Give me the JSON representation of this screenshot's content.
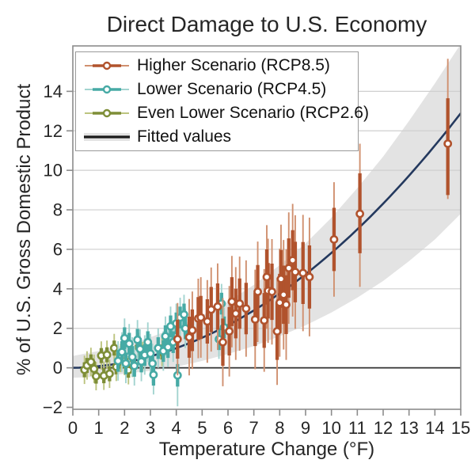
{
  "title": "Direct Damage to U.S. Economy",
  "colors": {
    "rcp85": "#b1532d",
    "rcp85_light": "#d0906f",
    "rcp45": "#46aaa5",
    "rcp45_light": "#a3d4d0",
    "rcp26": "#7e8e37",
    "rcp26_light": "#bcc47f",
    "fit_line": "#24395e",
    "band": "#e3e3e3",
    "grid": "#cfcfcf",
    "spine": "#8c8c8c",
    "zero_line": "#303030",
    "legend_fit_line": "#1a1a1a",
    "text": "#262626"
  },
  "legend": {
    "items": [
      {
        "id": "rcp85",
        "label": "Higher Scenario (RCP8.5)",
        "type": "series",
        "color": "#b1532d",
        "color_light": "#d0906f"
      },
      {
        "id": "rcp45",
        "label": "Lower Scenario (RCP4.5)",
        "type": "series",
        "color": "#46aaa5",
        "color_light": "#a3d4d0"
      },
      {
        "id": "rcp26",
        "label": "Even Lower Scenario (RCP2.6)",
        "type": "series",
        "color": "#7e8e37",
        "color_light": "#bcc47f"
      },
      {
        "id": "fit",
        "label": "Fitted values",
        "type": "fit",
        "color": "#1a1a1a",
        "band": "#e3e3e3"
      }
    ]
  },
  "chart_data": {
    "type": "scatter",
    "title": "Direct Damage to U.S. Economy",
    "xlabel": "Temperature Change (°F)",
    "ylabel": "% of U.S. Gross Domestic Product",
    "xlim": [
      0,
      15
    ],
    "ylim": [
      -2.1,
      16.3
    ],
    "x_ticks": [
      0,
      1,
      2,
      3,
      4,
      5,
      6,
      7,
      8,
      9,
      10,
      11,
      12,
      13,
      14,
      15
    ],
    "x_tick_labels": [
      "0",
      "1",
      "2",
      "3",
      "4",
      "5",
      "6",
      "7",
      "8",
      "9",
      "10",
      "11",
      "12",
      "13",
      "14",
      "15"
    ],
    "y_ticks": [
      -2,
      0,
      2,
      4,
      6,
      8,
      10,
      12,
      14
    ],
    "y_tick_labels": [
      "−2",
      "0",
      "2",
      "4",
      "6",
      "8",
      "10",
      "12",
      "14"
    ],
    "grid_values": [
      2,
      4,
      6,
      8,
      10,
      12,
      14
    ],
    "zero_line_value": 0,
    "legend_position": "upper left",
    "series": [
      {
        "name": "Even Lower Scenario (RCP2.6)",
        "color": "#7e8e37",
        "color_light": "#bcc47f",
        "points": [
          [
            0.45,
            -0.1
          ],
          [
            0.55,
            0.12
          ],
          [
            0.7,
            0.3
          ],
          [
            0.82,
            -0.05
          ],
          [
            0.9,
            -0.42
          ],
          [
            1.1,
            0.62
          ],
          [
            1.2,
            -0.4
          ],
          [
            1.32,
            0.66
          ],
          [
            1.42,
            -0.3
          ],
          [
            1.6,
            1.0
          ],
          [
            1.68,
            0.05
          ],
          [
            1.85,
            0.5
          ],
          [
            2.0,
            0.35
          ],
          [
            2.15,
            -0.12
          ],
          [
            2.3,
            0.25
          ],
          [
            2.55,
            1.05
          ],
          [
            2.7,
            0.6
          ],
          [
            3.45,
            0.8
          ]
        ],
        "thick_err": {
          "base": 0.38,
          "per_degree": 0
        },
        "thin_err": {
          "base": 0.72,
          "per_degree": 0
        },
        "overrides": []
      },
      {
        "name": "Lower Scenario (RCP4.5)",
        "color": "#46aaa5",
        "color_light": "#a3d4d0",
        "points": [
          [
            1.75,
            0.35
          ],
          [
            1.9,
            0.8
          ],
          [
            2.0,
            1.5
          ],
          [
            2.05,
            0.22
          ],
          [
            2.18,
            1.22
          ],
          [
            2.3,
            0.55
          ],
          [
            2.38,
            0.1
          ],
          [
            2.5,
            1.42
          ],
          [
            2.6,
            0.95
          ],
          [
            2.65,
            0.32
          ],
          [
            2.78,
            0.65
          ],
          [
            2.9,
            1.3
          ],
          [
            3.0,
            0.72
          ],
          [
            3.08,
            0.22
          ],
          [
            3.12,
            -0.35
          ],
          [
            3.3,
            1.0
          ],
          [
            3.5,
            0.85
          ],
          [
            3.58,
            1.6
          ],
          [
            3.68,
            1.05
          ],
          [
            3.78,
            2.1
          ],
          [
            3.88,
            1.3
          ],
          [
            4.0,
            2.25
          ],
          [
            4.05,
            -0.38
          ],
          [
            4.15,
            2.55
          ],
          [
            4.3,
            2.7
          ],
          [
            4.35,
            2.0
          ],
          [
            4.5,
            1.65
          ],
          [
            5.65,
            1.45
          ],
          [
            5.75,
            3.25
          ],
          [
            5.85,
            2.05
          ]
        ],
        "thick_err": {
          "base": 0.55,
          "per_degree": 0
        },
        "thin_err": {
          "base": 1.0,
          "per_degree": 0
        },
        "overrides": [
          {
            "t": 4.05,
            "thick": [
              -0.95,
              0.19
            ],
            "thin": [
              -1.95,
              0.62
            ]
          }
        ]
      },
      {
        "name": "Higher Scenario (RCP8.5)",
        "color": "#b1532d",
        "color_light": "#d0906f",
        "points": [
          [
            4.05,
            1.45
          ],
          [
            4.5,
            1.55
          ],
          [
            4.62,
            1.9
          ],
          [
            4.85,
            2.5
          ],
          [
            4.95,
            2.55
          ],
          [
            5.2,
            2.35
          ],
          [
            5.35,
            2.95
          ],
          [
            5.6,
            3.1
          ],
          [
            5.8,
            1.3
          ],
          [
            6.05,
            1.85
          ],
          [
            6.15,
            3.35
          ],
          [
            6.3,
            2.75
          ],
          [
            6.45,
            3.25
          ],
          [
            6.7,
            3.0
          ],
          [
            7.05,
            2.45
          ],
          [
            7.15,
            3.85
          ],
          [
            7.4,
            2.4
          ],
          [
            7.5,
            4.6
          ],
          [
            7.55,
            3.9
          ],
          [
            7.7,
            3.85
          ],
          [
            7.9,
            1.85
          ],
          [
            8.0,
            3.3
          ],
          [
            8.05,
            4.5
          ],
          [
            8.15,
            3.7
          ],
          [
            8.25,
            3.2
          ],
          [
            8.35,
            5.05
          ],
          [
            8.5,
            5.45
          ],
          [
            8.6,
            4.85
          ],
          [
            8.9,
            4.8
          ],
          [
            9.15,
            4.6
          ],
          [
            10.1,
            6.5
          ],
          [
            11.1,
            7.8
          ],
          [
            14.5,
            11.35
          ]
        ],
        "thick_err": {
          "base": 0.5,
          "per_degree": 0.12
        },
        "thin_err": {
          "base": 0.9,
          "per_degree": 0.23
        },
        "overrides": [
          {
            "t": 10.1,
            "thick": [
              4.9,
              8.1
            ],
            "thin": [
              3.6,
              9.4
            ]
          },
          {
            "t": 11.1,
            "thick": [
              5.8,
              9.85
            ],
            "thin": [
              4.1,
              11.35
            ]
          },
          {
            "t": 14.5,
            "thick": [
              8.75,
              13.65
            ],
            "thin": [
              8.55,
              15.65
            ]
          }
        ]
      }
    ],
    "fit": {
      "label": "Fitted values",
      "coeffs": {
        "linear": 0.027,
        "quadratic": 0.0555
      },
      "fit_values_t": [
        0,
        1,
        2,
        3,
        4,
        5,
        6,
        7,
        8,
        9,
        10,
        11,
        12,
        13,
        14,
        15
      ],
      "fit_values": [
        0,
        0.08,
        0.28,
        0.58,
        1.0,
        1.53,
        2.16,
        2.91,
        3.77,
        4.74,
        5.82,
        7.01,
        8.32,
        9.73,
        11.26,
        12.9
      ],
      "band_t": [
        0,
        1,
        2,
        3,
        4,
        5,
        6,
        7,
        8,
        9,
        10,
        11,
        12,
        13,
        14,
        15
      ],
      "band_upper": [
        0.6,
        0.85,
        1.15,
        1.55,
        2.05,
        2.65,
        3.35,
        4.2,
        5.2,
        6.3,
        7.6,
        9.1,
        10.7,
        12.5,
        14.4,
        16.4
      ],
      "band_lower": [
        -0.5,
        -0.45,
        -0.3,
        -0.15,
        0.05,
        0.35,
        0.7,
        1.1,
        1.6,
        2.15,
        2.8,
        3.55,
        4.4,
        5.4,
        6.5,
        7.8
      ]
    }
  }
}
